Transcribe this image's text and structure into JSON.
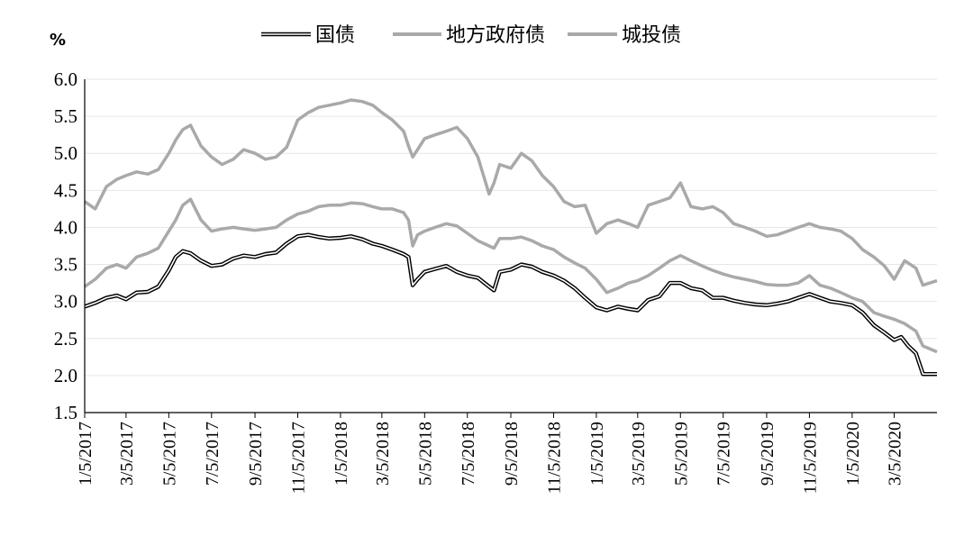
{
  "chart_data": {
    "type": "line",
    "title": "",
    "unit_label": "%",
    "xlabel": "",
    "ylabel": "",
    "ylim": [
      1.5,
      6.0
    ],
    "yticks": [
      "1.5",
      "2.0",
      "2.5",
      "3.0",
      "3.5",
      "4.0",
      "4.5",
      "5.0",
      "5.5",
      "6.0"
    ],
    "x_range": [
      "2017-01-05",
      "2020-05-05"
    ],
    "xticks": [
      {
        "date": "2017-01-05",
        "label": "1/5/2017"
      },
      {
        "date": "2017-03-05",
        "label": "3/5/2017"
      },
      {
        "date": "2017-05-05",
        "label": "5/5/2017"
      },
      {
        "date": "2017-07-05",
        "label": "7/5/2017"
      },
      {
        "date": "2017-09-05",
        "label": "9/5/2017"
      },
      {
        "date": "2017-11-05",
        "label": "11/5/2017"
      },
      {
        "date": "2018-01-05",
        "label": "1/5/2018"
      },
      {
        "date": "2018-03-05",
        "label": "3/5/2018"
      },
      {
        "date": "2018-05-05",
        "label": "5/5/2018"
      },
      {
        "date": "2018-07-05",
        "label": "7/5/2018"
      },
      {
        "date": "2018-09-05",
        "label": "9/5/2018"
      },
      {
        "date": "2018-11-05",
        "label": "11/5/2018"
      },
      {
        "date": "2019-01-05",
        "label": "1/5/2019"
      },
      {
        "date": "2019-03-05",
        "label": "3/5/2019"
      },
      {
        "date": "2019-05-05",
        "label": "5/5/2019"
      },
      {
        "date": "2019-07-05",
        "label": "7/5/2019"
      },
      {
        "date": "2019-09-05",
        "label": "9/5/2019"
      },
      {
        "date": "2019-11-05",
        "label": "11/5/2019"
      },
      {
        "date": "2020-01-05",
        "label": "1/5/2020"
      },
      {
        "date": "2020-03-05",
        "label": "3/5/2020"
      }
    ],
    "grid": true,
    "legend_position": "top-center",
    "series": [
      {
        "name": "国债",
        "style": "double",
        "color": "#000000",
        "points": [
          [
            "2017-01-05",
            2.93
          ],
          [
            "2017-01-20",
            2.98
          ],
          [
            "2017-02-05",
            3.05
          ],
          [
            "2017-02-20",
            3.08
          ],
          [
            "2017-03-05",
            3.03
          ],
          [
            "2017-03-20",
            3.12
          ],
          [
            "2017-04-05",
            3.13
          ],
          [
            "2017-04-20",
            3.2
          ],
          [
            "2017-05-05",
            3.42
          ],
          [
            "2017-05-15",
            3.6
          ],
          [
            "2017-05-25",
            3.68
          ],
          [
            "2017-06-05",
            3.65
          ],
          [
            "2017-06-20",
            3.55
          ],
          [
            "2017-07-05",
            3.48
          ],
          [
            "2017-07-20",
            3.5
          ],
          [
            "2017-08-05",
            3.58
          ],
          [
            "2017-08-20",
            3.62
          ],
          [
            "2017-09-05",
            3.6
          ],
          [
            "2017-09-20",
            3.64
          ],
          [
            "2017-10-05",
            3.66
          ],
          [
            "2017-10-20",
            3.78
          ],
          [
            "2017-11-05",
            3.88
          ],
          [
            "2017-11-20",
            3.9
          ],
          [
            "2017-12-05",
            3.87
          ],
          [
            "2017-12-20",
            3.85
          ],
          [
            "2018-01-05",
            3.86
          ],
          [
            "2018-01-20",
            3.88
          ],
          [
            "2018-02-05",
            3.84
          ],
          [
            "2018-02-20",
            3.78
          ],
          [
            "2018-03-05",
            3.75
          ],
          [
            "2018-03-20",
            3.7
          ],
          [
            "2018-04-05",
            3.64
          ],
          [
            "2018-04-12",
            3.6
          ],
          [
            "2018-04-18",
            3.22
          ],
          [
            "2018-04-25",
            3.3
          ],
          [
            "2018-05-05",
            3.4
          ],
          [
            "2018-05-20",
            3.44
          ],
          [
            "2018-06-05",
            3.48
          ],
          [
            "2018-06-20",
            3.4
          ],
          [
            "2018-07-05",
            3.35
          ],
          [
            "2018-07-20",
            3.32
          ],
          [
            "2018-08-05",
            3.2
          ],
          [
            "2018-08-12",
            3.15
          ],
          [
            "2018-08-20",
            3.4
          ],
          [
            "2018-09-05",
            3.43
          ],
          [
            "2018-09-20",
            3.5
          ],
          [
            "2018-10-05",
            3.47
          ],
          [
            "2018-10-20",
            3.4
          ],
          [
            "2018-11-05",
            3.35
          ],
          [
            "2018-11-20",
            3.28
          ],
          [
            "2018-12-05",
            3.18
          ],
          [
            "2018-12-20",
            3.05
          ],
          [
            "2019-01-05",
            2.92
          ],
          [
            "2019-01-20",
            2.88
          ],
          [
            "2019-02-05",
            2.93
          ],
          [
            "2019-02-20",
            2.9
          ],
          [
            "2019-03-05",
            2.88
          ],
          [
            "2019-03-20",
            3.02
          ],
          [
            "2019-04-05",
            3.07
          ],
          [
            "2019-04-20",
            3.25
          ],
          [
            "2019-05-05",
            3.25
          ],
          [
            "2019-05-20",
            3.18
          ],
          [
            "2019-06-05",
            3.15
          ],
          [
            "2019-06-20",
            3.05
          ],
          [
            "2019-07-05",
            3.05
          ],
          [
            "2019-07-20",
            3.01
          ],
          [
            "2019-08-05",
            2.98
          ],
          [
            "2019-08-20",
            2.96
          ],
          [
            "2019-09-05",
            2.95
          ],
          [
            "2019-09-20",
            2.97
          ],
          [
            "2019-10-05",
            3.0
          ],
          [
            "2019-10-20",
            3.05
          ],
          [
            "2019-11-05",
            3.1
          ],
          [
            "2019-11-20",
            3.05
          ],
          [
            "2019-12-05",
            3.0
          ],
          [
            "2019-12-20",
            2.98
          ],
          [
            "2020-01-05",
            2.95
          ],
          [
            "2020-01-20",
            2.85
          ],
          [
            "2020-02-05",
            2.68
          ],
          [
            "2020-02-20",
            2.58
          ],
          [
            "2020-03-05",
            2.48
          ],
          [
            "2020-03-15",
            2.52
          ],
          [
            "2020-03-25",
            2.4
          ],
          [
            "2020-04-05",
            2.3
          ],
          [
            "2020-04-15",
            2.02
          ],
          [
            "2020-05-05",
            2.02
          ]
        ]
      },
      {
        "name": "地方政府债",
        "style": "solid",
        "color": "#a9a9a9",
        "points": [
          [
            "2017-01-05",
            3.2
          ],
          [
            "2017-01-20",
            3.3
          ],
          [
            "2017-02-05",
            3.45
          ],
          [
            "2017-02-20",
            3.5
          ],
          [
            "2017-03-05",
            3.45
          ],
          [
            "2017-03-20",
            3.6
          ],
          [
            "2017-04-05",
            3.65
          ],
          [
            "2017-04-20",
            3.72
          ],
          [
            "2017-05-05",
            3.95
          ],
          [
            "2017-05-15",
            4.1
          ],
          [
            "2017-05-25",
            4.3
          ],
          [
            "2017-06-05",
            4.38
          ],
          [
            "2017-06-20",
            4.1
          ],
          [
            "2017-07-05",
            3.95
          ],
          [
            "2017-07-20",
            3.98
          ],
          [
            "2017-08-05",
            4.0
          ],
          [
            "2017-08-20",
            3.98
          ],
          [
            "2017-09-05",
            3.96
          ],
          [
            "2017-09-20",
            3.98
          ],
          [
            "2017-10-05",
            4.0
          ],
          [
            "2017-10-20",
            4.1
          ],
          [
            "2017-11-05",
            4.18
          ],
          [
            "2017-11-20",
            4.22
          ],
          [
            "2017-12-05",
            4.28
          ],
          [
            "2017-12-20",
            4.3
          ],
          [
            "2018-01-05",
            4.3
          ],
          [
            "2018-01-20",
            4.33
          ],
          [
            "2018-02-05",
            4.32
          ],
          [
            "2018-02-20",
            4.28
          ],
          [
            "2018-03-05",
            4.25
          ],
          [
            "2018-03-20",
            4.25
          ],
          [
            "2018-04-05",
            4.2
          ],
          [
            "2018-04-12",
            4.1
          ],
          [
            "2018-04-18",
            3.75
          ],
          [
            "2018-04-25",
            3.9
          ],
          [
            "2018-05-05",
            3.95
          ],
          [
            "2018-05-20",
            4.0
          ],
          [
            "2018-06-05",
            4.05
          ],
          [
            "2018-06-20",
            4.02
          ],
          [
            "2018-07-05",
            3.92
          ],
          [
            "2018-07-20",
            3.82
          ],
          [
            "2018-08-05",
            3.75
          ],
          [
            "2018-08-12",
            3.72
          ],
          [
            "2018-08-20",
            3.85
          ],
          [
            "2018-09-05",
            3.85
          ],
          [
            "2018-09-20",
            3.87
          ],
          [
            "2018-10-05",
            3.82
          ],
          [
            "2018-10-20",
            3.75
          ],
          [
            "2018-11-05",
            3.7
          ],
          [
            "2018-11-20",
            3.6
          ],
          [
            "2018-12-05",
            3.52
          ],
          [
            "2018-12-20",
            3.45
          ],
          [
            "2019-01-05",
            3.3
          ],
          [
            "2019-01-20",
            3.12
          ],
          [
            "2019-02-05",
            3.18
          ],
          [
            "2019-02-20",
            3.25
          ],
          [
            "2019-03-05",
            3.28
          ],
          [
            "2019-03-20",
            3.35
          ],
          [
            "2019-04-05",
            3.45
          ],
          [
            "2019-04-20",
            3.55
          ],
          [
            "2019-05-05",
            3.62
          ],
          [
            "2019-05-20",
            3.55
          ],
          [
            "2019-06-05",
            3.48
          ],
          [
            "2019-06-20",
            3.42
          ],
          [
            "2019-07-05",
            3.37
          ],
          [
            "2019-07-20",
            3.33
          ],
          [
            "2019-08-05",
            3.3
          ],
          [
            "2019-08-20",
            3.27
          ],
          [
            "2019-09-05",
            3.23
          ],
          [
            "2019-09-20",
            3.22
          ],
          [
            "2019-10-05",
            3.22
          ],
          [
            "2019-10-20",
            3.25
          ],
          [
            "2019-11-05",
            3.35
          ],
          [
            "2019-11-20",
            3.22
          ],
          [
            "2019-12-05",
            3.18
          ],
          [
            "2019-12-20",
            3.12
          ],
          [
            "2020-01-05",
            3.05
          ],
          [
            "2020-01-20",
            3.0
          ],
          [
            "2020-02-05",
            2.85
          ],
          [
            "2020-02-20",
            2.8
          ],
          [
            "2020-03-05",
            2.76
          ],
          [
            "2020-03-20",
            2.7
          ],
          [
            "2020-04-05",
            2.6
          ],
          [
            "2020-04-15",
            2.4
          ],
          [
            "2020-05-05",
            2.32
          ]
        ]
      },
      {
        "name": "城投债",
        "style": "solid",
        "color": "#a9a9a9",
        "points": [
          [
            "2017-01-05",
            4.35
          ],
          [
            "2017-01-20",
            4.25
          ],
          [
            "2017-02-05",
            4.55
          ],
          [
            "2017-02-20",
            4.65
          ],
          [
            "2017-03-05",
            4.7
          ],
          [
            "2017-03-20",
            4.75
          ],
          [
            "2017-04-05",
            4.72
          ],
          [
            "2017-04-20",
            4.78
          ],
          [
            "2017-05-05",
            5.0
          ],
          [
            "2017-05-15",
            5.18
          ],
          [
            "2017-05-25",
            5.32
          ],
          [
            "2017-06-05",
            5.38
          ],
          [
            "2017-06-20",
            5.1
          ],
          [
            "2017-07-05",
            4.95
          ],
          [
            "2017-07-20",
            4.85
          ],
          [
            "2017-08-05",
            4.92
          ],
          [
            "2017-08-20",
            5.05
          ],
          [
            "2017-09-05",
            5.0
          ],
          [
            "2017-09-20",
            4.92
          ],
          [
            "2017-10-05",
            4.95
          ],
          [
            "2017-10-20",
            5.08
          ],
          [
            "2017-11-05",
            5.45
          ],
          [
            "2017-11-20",
            5.55
          ],
          [
            "2017-12-05",
            5.62
          ],
          [
            "2017-12-20",
            5.65
          ],
          [
            "2018-01-05",
            5.68
          ],
          [
            "2018-01-20",
            5.72
          ],
          [
            "2018-02-05",
            5.7
          ],
          [
            "2018-02-20",
            5.65
          ],
          [
            "2018-03-05",
            5.55
          ],
          [
            "2018-03-20",
            5.45
          ],
          [
            "2018-04-05",
            5.3
          ],
          [
            "2018-04-12",
            5.1
          ],
          [
            "2018-04-18",
            4.95
          ],
          [
            "2018-04-25",
            5.05
          ],
          [
            "2018-05-05",
            5.2
          ],
          [
            "2018-05-20",
            5.25
          ],
          [
            "2018-06-05",
            5.3
          ],
          [
            "2018-06-20",
            5.35
          ],
          [
            "2018-07-05",
            5.2
          ],
          [
            "2018-07-20",
            4.95
          ],
          [
            "2018-08-05",
            4.45
          ],
          [
            "2018-08-12",
            4.6
          ],
          [
            "2018-08-20",
            4.85
          ],
          [
            "2018-09-05",
            4.8
          ],
          [
            "2018-09-20",
            5.0
          ],
          [
            "2018-10-05",
            4.9
          ],
          [
            "2018-10-20",
            4.7
          ],
          [
            "2018-11-05",
            4.55
          ],
          [
            "2018-11-20",
            4.35
          ],
          [
            "2018-12-05",
            4.28
          ],
          [
            "2018-12-20",
            4.3
          ],
          [
            "2019-01-05",
            3.92
          ],
          [
            "2019-01-20",
            4.05
          ],
          [
            "2019-02-05",
            4.1
          ],
          [
            "2019-02-20",
            4.05
          ],
          [
            "2019-03-05",
            4.0
          ],
          [
            "2019-03-20",
            4.3
          ],
          [
            "2019-04-05",
            4.35
          ],
          [
            "2019-04-20",
            4.4
          ],
          [
            "2019-05-05",
            4.6
          ],
          [
            "2019-05-20",
            4.28
          ],
          [
            "2019-06-05",
            4.25
          ],
          [
            "2019-06-20",
            4.28
          ],
          [
            "2019-07-05",
            4.2
          ],
          [
            "2019-07-20",
            4.05
          ],
          [
            "2019-08-05",
            4.0
          ],
          [
            "2019-08-20",
            3.95
          ],
          [
            "2019-09-05",
            3.88
          ],
          [
            "2019-09-20",
            3.9
          ],
          [
            "2019-10-05",
            3.95
          ],
          [
            "2019-10-20",
            4.0
          ],
          [
            "2019-11-05",
            4.05
          ],
          [
            "2019-11-20",
            4.0
          ],
          [
            "2019-12-05",
            3.98
          ],
          [
            "2019-12-20",
            3.95
          ],
          [
            "2020-01-05",
            3.85
          ],
          [
            "2020-01-20",
            3.7
          ],
          [
            "2020-02-05",
            3.6
          ],
          [
            "2020-02-20",
            3.48
          ],
          [
            "2020-03-05",
            3.3
          ],
          [
            "2020-03-20",
            3.55
          ],
          [
            "2020-04-05",
            3.45
          ],
          [
            "2020-04-15",
            3.22
          ],
          [
            "2020-05-05",
            3.28
          ]
        ]
      }
    ]
  }
}
